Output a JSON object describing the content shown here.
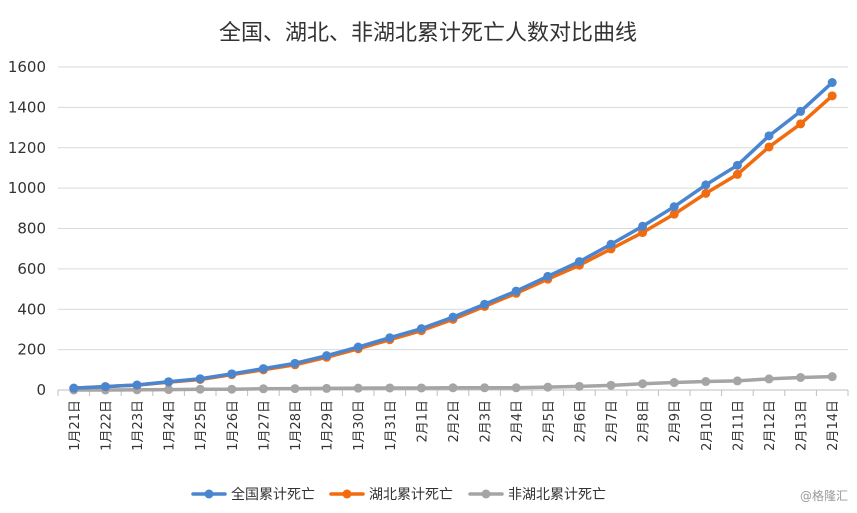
{
  "chart_data": {
    "type": "line",
    "title": "全国、湖北、非湖北累计死亡人数对比曲线",
    "xlabel": "",
    "ylabel": "",
    "ylim": [
      0,
      1600
    ],
    "yticks": [
      0,
      200,
      400,
      600,
      800,
      1000,
      1200,
      1400,
      1600
    ],
    "grid": "horizontal",
    "legend_position": "bottom",
    "categories": [
      "1月21日",
      "1月22日",
      "1月23日",
      "1月24日",
      "1月25日",
      "1月26日",
      "1月27日",
      "1月28日",
      "1月29日",
      "1月30日",
      "1月31日",
      "2月1日",
      "2月2日",
      "2月3日",
      "2月4日",
      "2月5日",
      "2月6日",
      "2月7日",
      "2月8日",
      "2月9日",
      "2月10日",
      "2月11日",
      "2月12日",
      "2月13日",
      "2月14日"
    ],
    "series": [
      {
        "name": "全国累计死亡",
        "color": "#4a86d0",
        "values": [
          9,
          17,
          25,
          41,
          56,
          80,
          106,
          132,
          170,
          213,
          259,
          304,
          361,
          425,
          490,
          563,
          636,
          722,
          811,
          908,
          1016,
          1113,
          1259,
          1380,
          1523
        ]
      },
      {
        "name": "湖北累计死亡",
        "color": "#f26b0f",
        "values": [
          9,
          17,
          24,
          39,
          52,
          76,
          100,
          125,
          162,
          204,
          249,
          294,
          350,
          414,
          479,
          549,
          618,
          699,
          780,
          871,
          974,
          1068,
          1204,
          1318,
          1457
        ]
      },
      {
        "name": "非湖北累计死亡",
        "color": "#a5a5a5",
        "values": [
          0,
          0,
          1,
          2,
          4,
          4,
          6,
          7,
          8,
          9,
          10,
          10,
          11,
          11,
          11,
          14,
          18,
          23,
          31,
          37,
          42,
          45,
          55,
          62,
          66
        ]
      }
    ]
  },
  "watermark": "@格隆汇"
}
